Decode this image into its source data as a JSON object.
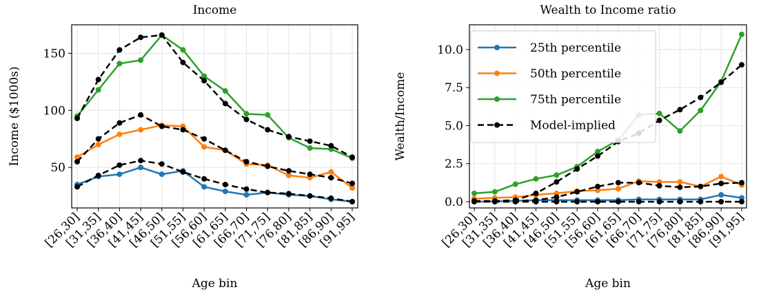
{
  "chart_data": [
    {
      "type": "line",
      "title": "Income",
      "xlabel": "Age bin",
      "ylabel": "Income ($1000s)",
      "categories": [
        "[26,30]",
        "[31,35]",
        "[36,40]",
        "[41,45]",
        "[46,50]",
        "[51,55]",
        "[56,60]",
        "[61,65]",
        "[66,70]",
        "[71,75]",
        "[76,80]",
        "[81,85]",
        "[86,90]",
        "[91,95]"
      ],
      "ylim": [
        14.5,
        175
      ],
      "yticks": [
        50,
        100,
        150
      ],
      "grid": true,
      "model_color": "#000000",
      "series": [
        {
          "color": "#1f77b4",
          "values": [
            35,
            42,
            44,
            50,
            44,
            47,
            33,
            29,
            26,
            28,
            26,
            25,
            22,
            20
          ],
          "model_values": [
            33,
            43,
            52,
            56,
            53,
            46,
            40,
            35,
            31,
            28,
            27,
            25,
            23,
            20
          ]
        },
        {
          "color": "#ff7f0e",
          "values": [
            59,
            70,
            79,
            83,
            87,
            86,
            68,
            65,
            53,
            52,
            43,
            41,
            46,
            32
          ],
          "model_values": [
            55,
            75,
            89,
            96,
            86,
            83,
            75,
            65,
            55,
            51,
            47,
            44,
            41,
            36
          ]
        },
        {
          "color": "#2ca02c",
          "values": [
            95,
            118,
            141,
            144,
            166,
            153,
            130,
            117,
            97,
            96,
            76,
            67,
            66,
            58
          ],
          "model_values": [
            93,
            127,
            153,
            164,
            166,
            142,
            126,
            106,
            92,
            83,
            77,
            73,
            69,
            59
          ]
        }
      ]
    },
    {
      "type": "line",
      "title": "Wealth to Income ratio",
      "xlabel": "Age bin",
      "ylabel": "Wealth/Income",
      "categories": [
        "[26,30]",
        "[31,35]",
        "[36,40]",
        "[41,45]",
        "[46,50]",
        "[51,55]",
        "[56,60]",
        "[61,65]",
        "[66,70]",
        "[71,75]",
        "[76,80]",
        "[81,85]",
        "[86,90]",
        "[91,95]"
      ],
      "ylim": [
        -0.41,
        11.63
      ],
      "yticks": [
        {
          "value": 0,
          "label": "0.0"
        },
        {
          "value": 2.5,
          "label": "2.5"
        },
        {
          "value": 5,
          "label": "5.0"
        },
        {
          "value": 7.5,
          "label": "7.5"
        },
        {
          "value": 10,
          "label": "10.0"
        }
      ],
      "grid": true,
      "legend": "upper left",
      "model_label": "Model-implied",
      "model_color": "#000000",
      "series": [
        {
          "name": "25th percentile",
          "color": "#1f77b4",
          "values": [
            0.0,
            0.02,
            0.05,
            0.1,
            0.1,
            0.1,
            0.1,
            0.1,
            0.15,
            0.15,
            0.15,
            0.15,
            0.45,
            0.25
          ],
          "model_values": [
            0,
            0,
            0,
            0,
            0,
            0,
            0,
            0,
            0,
            0,
            0,
            0,
            0,
            0
          ]
        },
        {
          "name": "50th percentile",
          "color": "#ff7f0e",
          "values": [
            0.2,
            0.25,
            0.3,
            0.45,
            0.55,
            0.7,
            0.75,
            0.85,
            1.35,
            1.3,
            1.3,
            1.0,
            1.65,
            1.1
          ],
          "model_values": [
            0.05,
            0.05,
            0.05,
            0.1,
            0.3,
            0.65,
            1.0,
            1.25,
            1.25,
            1.05,
            0.95,
            1.0,
            1.2,
            1.25
          ]
        },
        {
          "name": "75th percentile",
          "color": "#2ca02c",
          "values": [
            0.55,
            0.65,
            1.15,
            1.5,
            1.75,
            2.3,
            3.3,
            4.05,
            5.7,
            5.8,
            4.65,
            6.0,
            7.9,
            11.0
          ],
          "model_values": [
            0.05,
            0.05,
            0.1,
            0.55,
            1.3,
            2.15,
            3.0,
            3.95,
            4.5,
            5.35,
            6.05,
            6.85,
            7.85,
            9.0
          ]
        }
      ]
    }
  ]
}
